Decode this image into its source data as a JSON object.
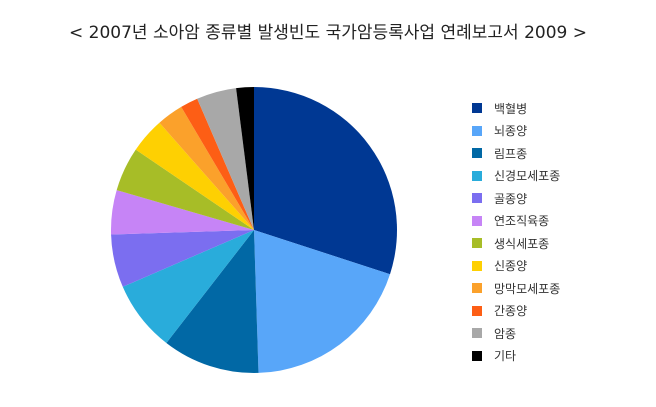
{
  "chart_data": {
    "type": "pie",
    "title": "< 2007년 소아암 종류별 발생빈도 국가암등록사업 연례보고서 2009 >",
    "slices": [
      {
        "label": "백혈병",
        "value": 30.0,
        "color": "#003893"
      },
      {
        "label": "뇌종양",
        "value": 19.5,
        "color": "#58a6f9"
      },
      {
        "label": "림프종",
        "value": 11.0,
        "color": "#0168a5"
      },
      {
        "label": "신경모세포종",
        "value": 8.0,
        "color": "#29acdb"
      },
      {
        "label": "골종양",
        "value": 6.0,
        "color": "#7b6ef0"
      },
      {
        "label": "연조직육종",
        "value": 5.0,
        "color": "#c684f6"
      },
      {
        "label": "생식세포종",
        "value": 5.0,
        "color": "#a7bd27"
      },
      {
        "label": "신종양",
        "value": 4.0,
        "color": "#fed002"
      },
      {
        "label": "망막모세포종",
        "value": 3.0,
        "color": "#fba12b"
      },
      {
        "label": "간종양",
        "value": 2.0,
        "color": "#fd5e15"
      },
      {
        "label": "암종",
        "value": 4.5,
        "color": "#a8a8a8"
      },
      {
        "label": "기타",
        "value": 2.0,
        "color": "#000000"
      }
    ],
    "start_angle": "12 o'clock",
    "direction": "clockwise",
    "legend_position": "right"
  }
}
